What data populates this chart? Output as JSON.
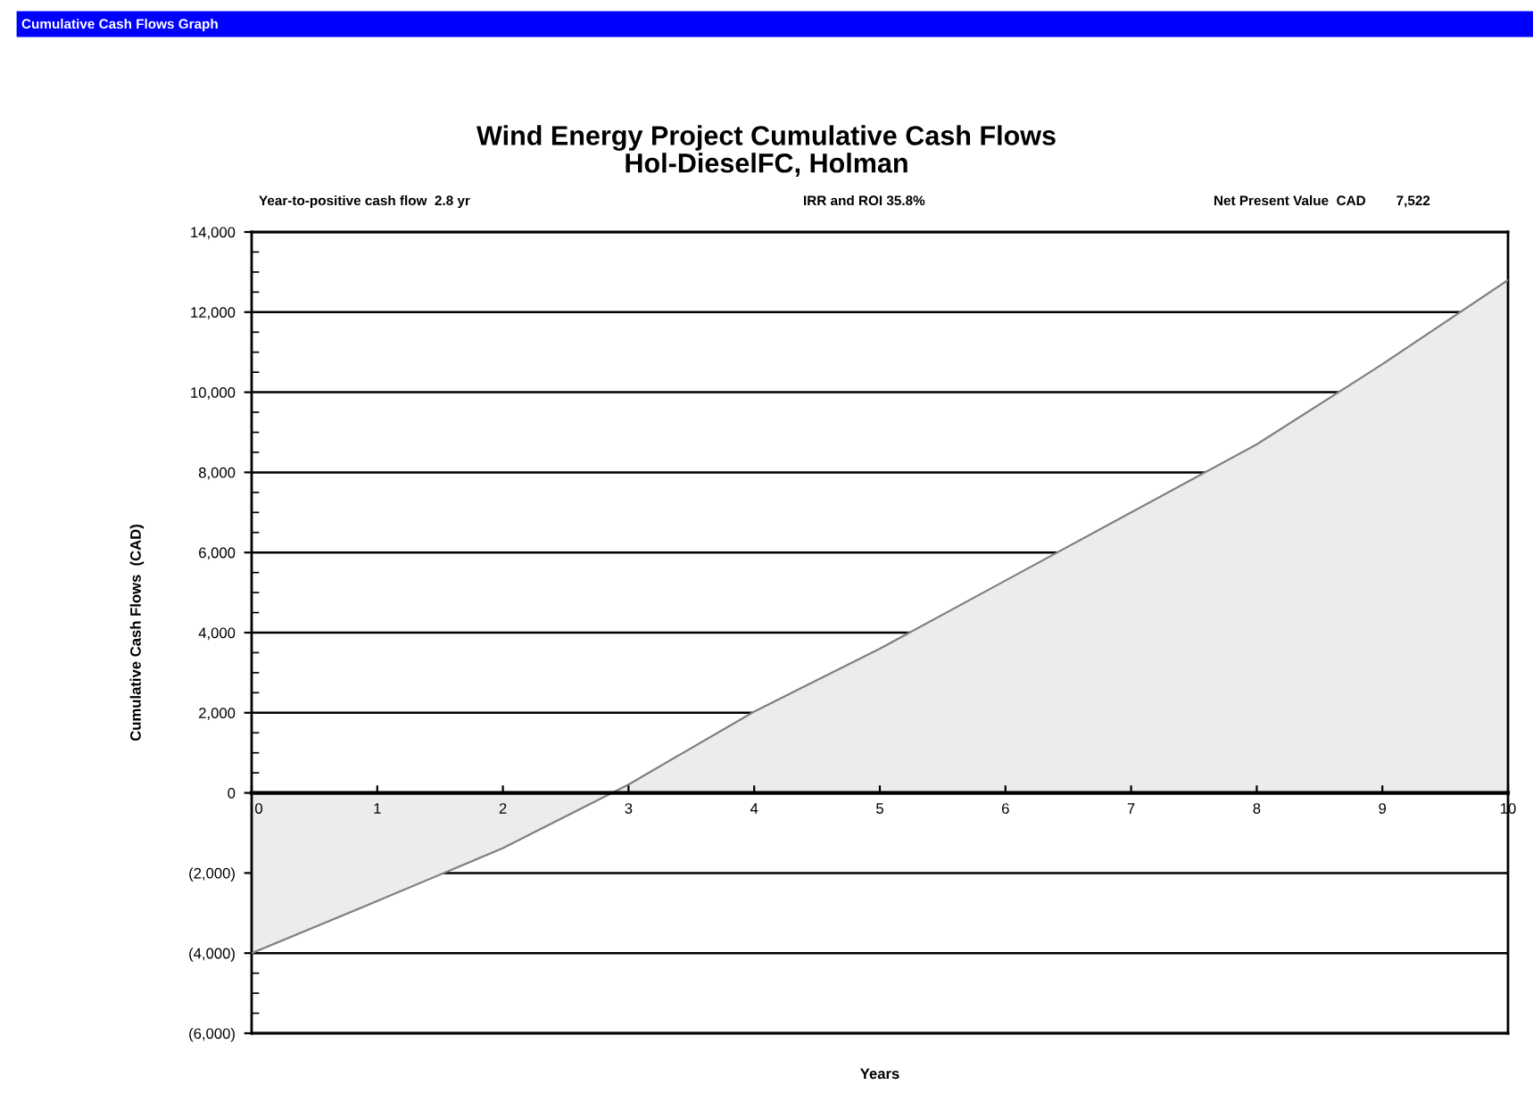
{
  "chart_data": {
    "type": "area",
    "title": "Wind Energy Project Cumulative Cash Flows\nHol-DieselFC, Holman",
    "xlabel": "Years",
    "ylabel": "Cumulative Cash Flows  (CAD)",
    "annotations": [
      "Cumulative Cash Flows Graph",
      "Year-to-positive cash flow  2.8 yr",
      "IRR and ROI 35.8%",
      "Net Present Value  CAD        7,522"
    ],
    "x": [
      0,
      1,
      2,
      3,
      4,
      5,
      6,
      7,
      8,
      9,
      10
    ],
    "series": [
      {
        "color": "#ececec",
        "values": [
          -4000,
          -2700,
          -1380,
          210,
          2030,
          3600,
          5300,
          7000,
          8700,
          10700,
          12800
        ]
      }
    ],
    "xlim": [
      0,
      10
    ],
    "xticks": [
      0,
      1,
      2,
      3,
      4,
      5,
      6,
      7,
      8,
      9,
      10
    ],
    "ylim": [
      -6000,
      14000
    ],
    "yticks": [
      {
        "value": -6000,
        "label": "(6,000)"
      },
      {
        "value": -4000,
        "label": "(4,000)"
      },
      {
        "value": -2000,
        "label": "(2,000)"
      },
      0,
      {
        "value": 2000,
        "label": "2,000"
      },
      {
        "value": 4000,
        "label": "4,000"
      },
      {
        "value": 6000,
        "label": "6,000"
      },
      {
        "value": 8000,
        "label": "8,000"
      },
      {
        "value": 10000,
        "label": "10,000"
      },
      {
        "value": 12000,
        "label": "12,000"
      },
      {
        "value": 14000,
        "label": "14,000"
      }
    ],
    "grid": "y",
    "legend": false
  }
}
